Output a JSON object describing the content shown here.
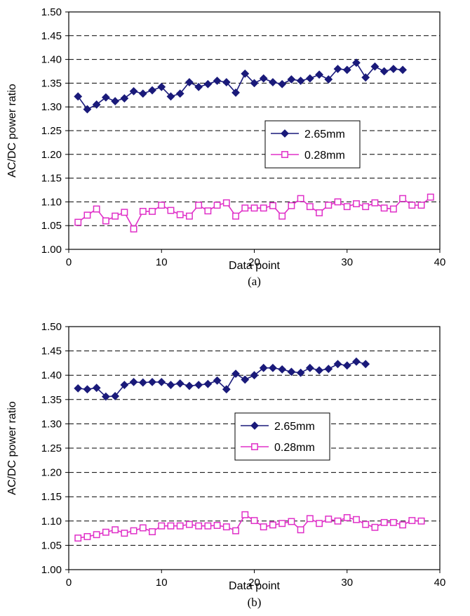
{
  "chart_data": [
    {
      "type": "line",
      "panel_label": "(a)",
      "xlabel": "Data point",
      "ylabel": "AC/DC power ratio",
      "xlim": [
        0,
        40
      ],
      "ylim": [
        1.0,
        1.5
      ],
      "xticks": [
        "0",
        "10",
        "20",
        "30",
        "40"
      ],
      "yticks": [
        "1.00",
        "1.05",
        "1.10",
        "1.15",
        "1.20",
        "1.25",
        "1.30",
        "1.35",
        "1.40",
        "1.45",
        "1.50"
      ],
      "grid": "horizontal dashed",
      "legend_position": "center-right",
      "series": [
        {
          "name": "2.65mm",
          "color": "#1a1a7a",
          "marker": "diamond",
          "x": [
            1,
            2,
            3,
            4,
            5,
            6,
            7,
            8,
            9,
            10,
            11,
            12,
            13,
            14,
            15,
            16,
            17,
            18,
            19,
            20,
            21,
            22,
            23,
            24,
            25,
            26,
            27,
            28,
            29,
            30,
            31,
            32,
            33,
            34,
            35,
            36
          ],
          "values": [
            1.322,
            1.295,
            1.305,
            1.32,
            1.312,
            1.318,
            1.333,
            1.328,
            1.335,
            1.342,
            1.322,
            1.328,
            1.352,
            1.342,
            1.348,
            1.355,
            1.352,
            1.33,
            1.37,
            1.35,
            1.36,
            1.352,
            1.348,
            1.358,
            1.355,
            1.36,
            1.368,
            1.358,
            1.38,
            1.378,
            1.393,
            1.362,
            1.385,
            1.375,
            1.38,
            1.378
          ]
        },
        {
          "name": "0.28mm",
          "color": "#e030c8",
          "marker": "square",
          "x": [
            1,
            2,
            3,
            4,
            5,
            6,
            7,
            8,
            9,
            10,
            11,
            12,
            13,
            14,
            15,
            16,
            17,
            18,
            19,
            20,
            21,
            22,
            23,
            24,
            25,
            26,
            27,
            28,
            29,
            30,
            31,
            32,
            33,
            34,
            35,
            36,
            37,
            38,
            39
          ],
          "values": [
            1.057,
            1.072,
            1.085,
            1.06,
            1.07,
            1.078,
            1.043,
            1.08,
            1.08,
            1.093,
            1.082,
            1.073,
            1.07,
            1.093,
            1.081,
            1.093,
            1.098,
            1.07,
            1.087,
            1.087,
            1.087,
            1.092,
            1.07,
            1.092,
            1.107,
            1.09,
            1.077,
            1.093,
            1.1,
            1.09,
            1.096,
            1.09,
            1.098,
            1.087,
            1.085,
            1.107,
            1.093,
            1.093,
            1.11
          ]
        }
      ]
    },
    {
      "type": "line",
      "panel_label": "(b)",
      "xlabel": "Data point",
      "ylabel": "AC/DC power ratio",
      "xlim": [
        0,
        40
      ],
      "ylim": [
        1.0,
        1.5
      ],
      "xticks": [
        "0",
        "10",
        "20",
        "30",
        "40"
      ],
      "yticks": [
        "1.00",
        "1.05",
        "1.10",
        "1.15",
        "1.20",
        "1.25",
        "1.30",
        "1.35",
        "1.40",
        "1.45",
        "1.50"
      ],
      "grid": "horizontal dashed",
      "legend_position": "center",
      "series": [
        {
          "name": "2.65mm",
          "color": "#1a1a7a",
          "marker": "diamond",
          "x": [
            1,
            2,
            3,
            4,
            5,
            6,
            7,
            8,
            9,
            10,
            11,
            12,
            13,
            14,
            15,
            16,
            17,
            18,
            19,
            20,
            21,
            22,
            23,
            24,
            25,
            26,
            27,
            28,
            29,
            30,
            31,
            32
          ],
          "values": [
            1.373,
            1.371,
            1.374,
            1.356,
            1.357,
            1.38,
            1.386,
            1.385,
            1.386,
            1.386,
            1.38,
            1.383,
            1.378,
            1.38,
            1.382,
            1.389,
            1.371,
            1.403,
            1.391,
            1.4,
            1.415,
            1.415,
            1.412,
            1.407,
            1.405,
            1.415,
            1.41,
            1.413,
            1.423,
            1.42,
            1.428,
            1.423
          ]
        },
        {
          "name": "0.28mm",
          "color": "#e030c8",
          "marker": "square",
          "x": [
            1,
            2,
            3,
            4,
            5,
            6,
            7,
            8,
            9,
            10,
            11,
            12,
            13,
            14,
            15,
            16,
            17,
            18,
            19,
            20,
            21,
            22,
            23,
            24,
            25,
            26,
            27,
            28,
            29,
            30,
            31,
            32,
            33,
            34,
            35,
            36,
            37,
            38
          ],
          "values": [
            1.065,
            1.068,
            1.072,
            1.077,
            1.082,
            1.075,
            1.08,
            1.086,
            1.078,
            1.09,
            1.09,
            1.09,
            1.093,
            1.09,
            1.09,
            1.091,
            1.088,
            1.08,
            1.113,
            1.101,
            1.088,
            1.092,
            1.095,
            1.099,
            1.082,
            1.105,
            1.095,
            1.104,
            1.1,
            1.107,
            1.103,
            1.093,
            1.087,
            1.097,
            1.097,
            1.092,
            1.101,
            1.1
          ]
        }
      ]
    }
  ]
}
